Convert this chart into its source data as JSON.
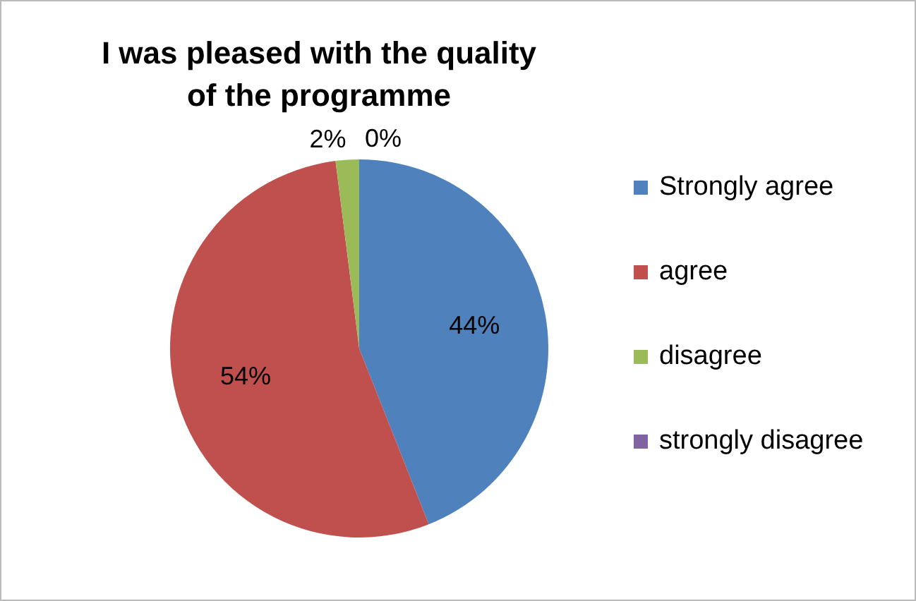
{
  "chart_data": {
    "type": "pie",
    "title": "I was pleased with the quality of the programme",
    "categories": [
      "Strongly agree",
      "agree",
      "disagree",
      "strongly disagree"
    ],
    "values": [
      44,
      54,
      2,
      0
    ],
    "colors": [
      "#4f81bd",
      "#c0504d",
      "#9bbb59",
      "#8064a2"
    ],
    "value_labels": [
      "44%",
      "54%",
      "2%",
      "0%"
    ],
    "legend": "right"
  }
}
